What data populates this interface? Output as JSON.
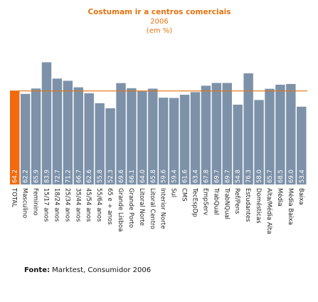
{
  "chart_data": {
    "type": "bar",
    "title": "Costumam ir a centros comerciais",
    "subtitle_year": "2006",
    "subtitle_unit": "(em %)",
    "categories": [
      "TOTAL",
      "Masculino",
      "Feminino",
      "15/17 anos",
      "18/24 anos",
      "25/34 anos",
      "35/44 anos",
      "45/54 anos",
      "55/64 anos",
      "65 e + anos",
      "Grande Lisboa",
      "Grande Porto",
      "Litoral Norte",
      "Litoral Centro",
      "Interior Norte",
      "Sul",
      "CMS",
      "TecEspDp",
      "EmpServ",
      "TrabQual",
      "TrabNQual",
      "Ref/Pens",
      "Estudantes",
      "Domésticas",
      "Alta/Média Alta",
      "Média",
      "Média Baixa",
      "Baixa"
    ],
    "values": [
      64.2,
      62.2,
      65.9,
      83.9,
      72.7,
      71.2,
      66.7,
      62.6,
      55.8,
      52.3,
      69.6,
      66.1,
      64.0,
      65.8,
      59.6,
      59.4,
      61.6,
      63.4,
      67.8,
      69.7,
      69.7,
      54.8,
      76.3,
      58.0,
      65.7,
      68.5,
      69.0,
      53.4
    ],
    "value_labels": [
      "64.2",
      "62.2",
      "65.9",
      "83.9",
      "72.7",
      "71.2",
      "66.7",
      "62.6",
      "55.8",
      "52.3",
      "69.6",
      "66.1",
      "64.0",
      "65.8",
      "59.6",
      "59.4",
      "61.6",
      "63.4",
      "67.8",
      "69.7",
      "69.7",
      "54.8",
      "76.3",
      "58.0",
      "65.7",
      "68.5",
      "69.0",
      "53.4"
    ],
    "reference_line": 64.2,
    "highlight_category": "TOTAL",
    "ylim": [
      0,
      90
    ],
    "colors": {
      "highlight": "#f26a0c",
      "bar": "#7d92a9",
      "reference_line": "#e4730f",
      "title": "#e4730f"
    },
    "source_label": "Fonte:",
    "source_text": " Marktest, Consumidor 2006"
  }
}
